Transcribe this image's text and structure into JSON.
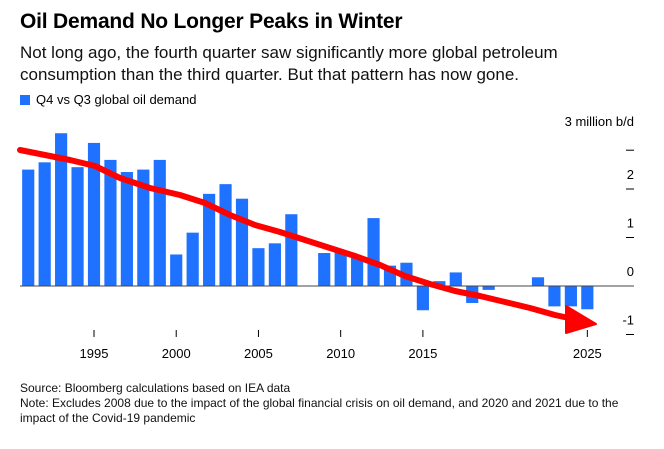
{
  "header": {
    "title": "Oil Demand No Longer Peaks in Winter",
    "subtitle": "Not long ago, the fourth quarter saw significantly more global petroleum consumption than the third quarter. But that pattern has now gone."
  },
  "footer": {
    "source": "Source: Bloomberg calculations based on IEA data",
    "note": "Note: Excludes 2008 due to the impact of the global financial crisis on oil demand, and 2020 and 2021 due to the impact of the Covid-19 pandemic"
  },
  "colors": {
    "bar": "#1f72ff",
    "trend": "#ff0000",
    "zero_line": "#444444"
  },
  "chart_data": {
    "type": "bar",
    "title": "Oil Demand No Longer Peaks in Winter",
    "legend": [
      "Q4 vs Q3 global oil demand"
    ],
    "legend_position": "top-left",
    "ylabel": "3 million b/d",
    "ylim": [
      -1.2,
      3
    ],
    "yticks": [
      -1,
      0,
      1,
      2
    ],
    "ytick_labels": [
      "-1",
      "0",
      "1",
      "2"
    ],
    "xticks": [
      1995,
      2000,
      2005,
      2010,
      2015,
      2025
    ],
    "xtick_labels": [
      "1995",
      "2000",
      "2005",
      "2010",
      "2015",
      "2025"
    ],
    "xlim": [
      1990.5,
      2026.5
    ],
    "grid": false,
    "series": [
      {
        "name": "Q4 vs Q3 global oil demand",
        "x": [
          1991,
          1992,
          1993,
          1994,
          1995,
          1996,
          1997,
          1998,
          1999,
          2000,
          2001,
          2002,
          2003,
          2004,
          2005,
          2006,
          2007,
          2009,
          2010,
          2011,
          2012,
          2013,
          2014,
          2015,
          2016,
          2017,
          2018,
          2019,
          2022,
          2023,
          2024,
          2025
        ],
        "values": [
          2.4,
          2.55,
          3.15,
          2.45,
          2.95,
          2.6,
          2.35,
          2.4,
          2.6,
          0.65,
          1.1,
          1.9,
          2.1,
          1.8,
          0.78,
          0.88,
          1.48,
          0.68,
          0.7,
          0.6,
          1.4,
          0.42,
          0.48,
          -0.5,
          0.1,
          0.28,
          -0.35,
          -0.08,
          0.18,
          -0.42,
          -0.42,
          -0.48
        ]
      }
    ],
    "annotations": [
      {
        "type": "trend-arrow",
        "description": "hand-drawn red downward trend arrow"
      }
    ]
  }
}
